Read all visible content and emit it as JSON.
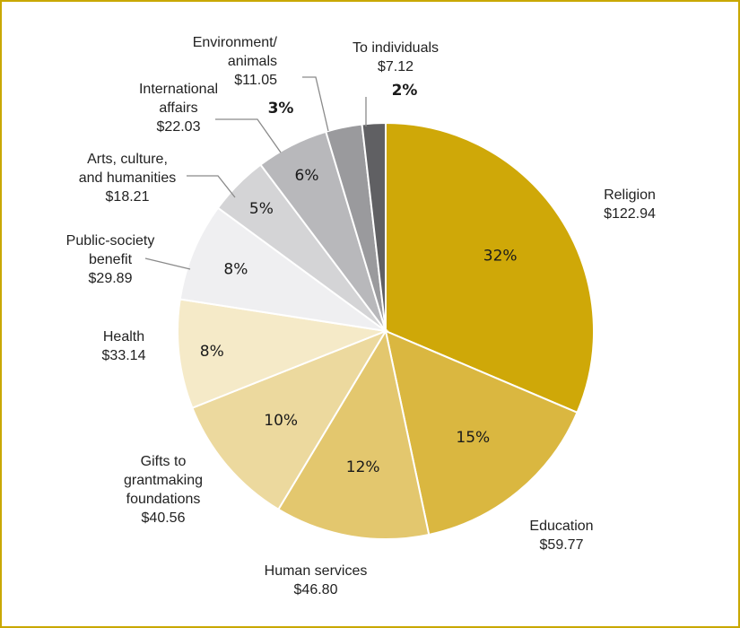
{
  "chart_data": {
    "type": "pie",
    "unit_prefix": "$",
    "slices": [
      {
        "category": [
          "Religion"
        ],
        "value": 122.94,
        "value_label": "$122.94",
        "percent_label": "32%",
        "color": "#cfa808"
      },
      {
        "category": [
          "Education"
        ],
        "value": 59.77,
        "value_label": "$59.77",
        "percent_label": "15%",
        "color": "#dab740"
      },
      {
        "category": [
          "Human services"
        ],
        "value": 46.8,
        "value_label": "$46.80",
        "percent_label": "12%",
        "color": "#e3c76e"
      },
      {
        "category": [
          "Gifts to",
          "grantmaking",
          "foundations"
        ],
        "value": 40.56,
        "value_label": "$40.56",
        "percent_label": "10%",
        "color": "#ecd99e"
      },
      {
        "category": [
          "Health"
        ],
        "value": 33.14,
        "value_label": "$33.14",
        "percent_label": "8%",
        "color": "#f5eac8"
      },
      {
        "category": [
          "Public-society",
          "benefit"
        ],
        "value": 29.89,
        "value_label": "$29.89",
        "percent_label": "8%",
        "color": "#efeff1"
      },
      {
        "category": [
          "Arts, culture,",
          "and humanities"
        ],
        "value": 18.21,
        "value_label": "$18.21",
        "percent_label": "5%",
        "color": "#d4d4d6"
      },
      {
        "category": [
          "International",
          "affairs"
        ],
        "value": 22.03,
        "value_label": "$22.03",
        "percent_label": "6%",
        "color": "#b8b8bb"
      },
      {
        "category": [
          "Environment/",
          "animals"
        ],
        "value": 11.05,
        "value_label": "$11.05",
        "percent_label": "3%",
        "color": "#9a9a9d"
      },
      {
        "category": [
          "To individuals"
        ],
        "value": 7.12,
        "value_label": "$7.12",
        "percent_label": "2%",
        "color": "#606063"
      }
    ]
  }
}
